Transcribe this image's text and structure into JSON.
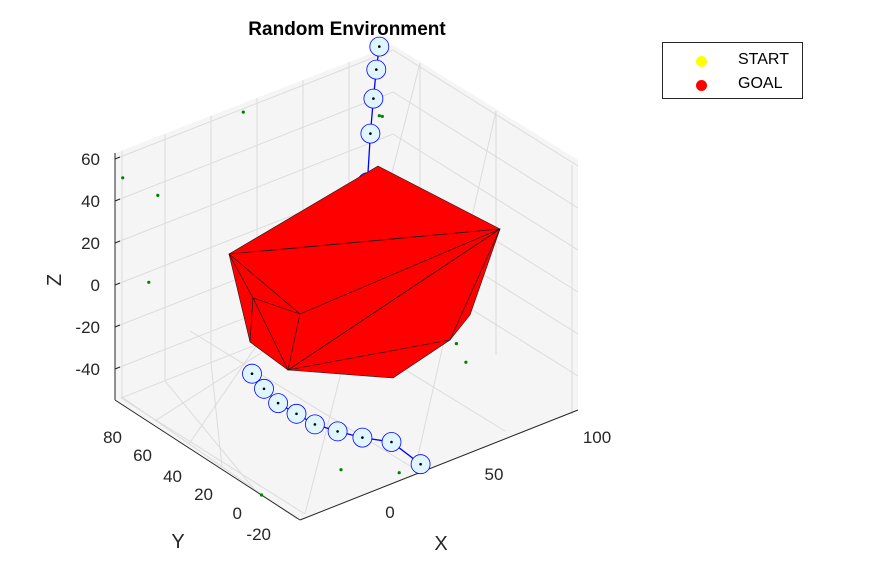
{
  "chart_data": {
    "type": "3d",
    "title": "Random Environment",
    "xlabel": "X",
    "ylabel": "Y",
    "zlabel": "Z",
    "x_ticks": [
      "0",
      "50",
      "100"
    ],
    "y_ticks": [
      "-20",
      "0",
      "20",
      "40",
      "60",
      "80"
    ],
    "z_ticks": [
      "-40",
      "-20",
      "0",
      "20",
      "40",
      "60"
    ],
    "xlim": [
      -20,
      110
    ],
    "ylim": [
      -25,
      95
    ],
    "zlim": [
      -55,
      70
    ],
    "view": {
      "azimuth": -37.5,
      "elevation": 30
    },
    "grid": true,
    "legend_position": "outside-top-right",
    "legend": [
      {
        "label": "START",
        "color": "#ffff00"
      },
      {
        "label": "GOAL",
        "color": "#ff0000"
      }
    ],
    "obstacle": {
      "color": "#ff0000",
      "edge_color": "#000000",
      "approx_vertices": [
        {
          "x": 40,
          "y": 70,
          "z": 48
        },
        {
          "x": 95,
          "y": 20,
          "z": 50
        },
        {
          "x": -10,
          "y": 70,
          "z": 18
        },
        {
          "x": 20,
          "y": 40,
          "z": -5
        },
        {
          "x": 0,
          "y": 50,
          "z": -30
        },
        {
          "x": 40,
          "y": 20,
          "z": -45
        },
        {
          "x": 70,
          "y": 10,
          "z": -20
        }
      ]
    },
    "path": {
      "color": "#0000ff",
      "waypoint_fill": "#dff6ff",
      "points": [
        {
          "x": 40,
          "y": -20,
          "z": -55
        },
        {
          "x": 30,
          "y": -15,
          "z": -42
        },
        {
          "x": 20,
          "y": -10,
          "z": -38
        },
        {
          "x": 12,
          "y": -5,
          "z": -34
        },
        {
          "x": 5,
          "y": 0,
          "z": -30
        },
        {
          "x": 0,
          "y": 5,
          "z": -25
        },
        {
          "x": -5,
          "y": 10,
          "z": -20
        },
        {
          "x": -8,
          "y": 15,
          "z": -14
        },
        {
          "x": -10,
          "y": 20,
          "z": -8
        },
        {
          "x": 80,
          "y": 70,
          "z": 25
        },
        {
          "x": 85,
          "y": 75,
          "z": 45
        },
        {
          "x": 90,
          "y": 80,
          "z": 58
        },
        {
          "x": 95,
          "y": 85,
          "z": 68
        },
        {
          "x": 100,
          "y": 90,
          "z": 75
        }
      ]
    },
    "scatter_points": {
      "color": "#008000",
      "points": [
        {
          "x": -20,
          "y": 90,
          "z": 60
        },
        {
          "x": 0,
          "y": 95,
          "z": 40
        },
        {
          "x": 40,
          "y": 95,
          "z": 65
        },
        {
          "x": 100,
          "y": 90,
          "z": 40
        },
        {
          "x": 105,
          "y": 95,
          "z": 35
        },
        {
          "x": -15,
          "y": 80,
          "z": 10
        },
        {
          "x": 30,
          "y": 60,
          "z": 0
        },
        {
          "x": 10,
          "y": 50,
          "z": -5
        },
        {
          "x": 100,
          "y": 40,
          "z": -50
        },
        {
          "x": 90,
          "y": 20,
          "z": -45
        },
        {
          "x": 80,
          "y": 30,
          "z": -40
        },
        {
          "x": 10,
          "y": -10,
          "z": -50
        },
        {
          "x": 30,
          "y": -20,
          "z": -55
        },
        {
          "x": -20,
          "y": 0,
          "z": -55
        }
      ]
    }
  }
}
